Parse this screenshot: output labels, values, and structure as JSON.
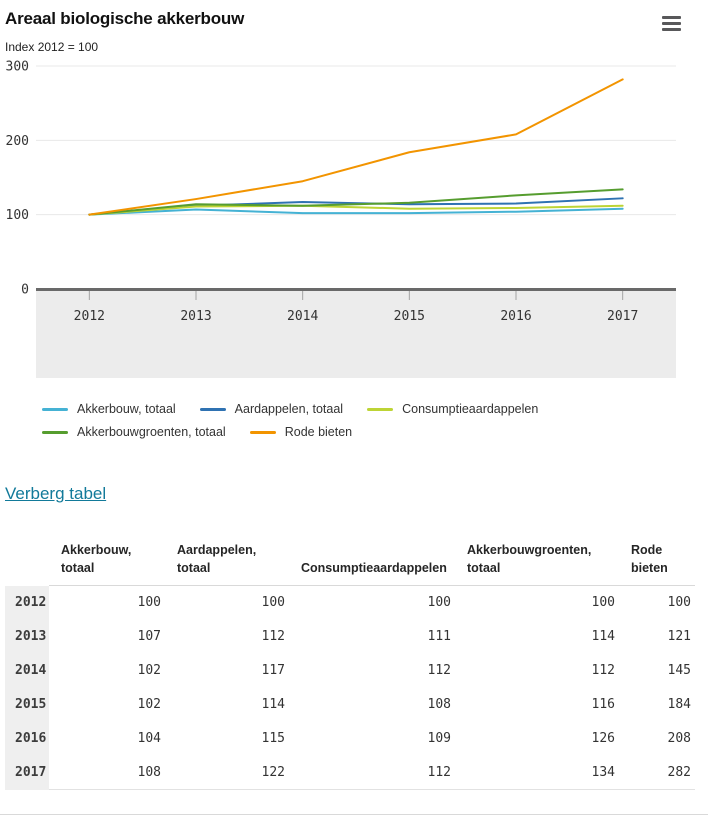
{
  "header": {
    "title": "Areaal biologische akkerbouw",
    "subtitle": "Index 2012 = 100"
  },
  "chart_data": {
    "type": "line",
    "title": "Areaal biologische akkerbouw",
    "subtitle": "Index 2012 = 100",
    "x": [
      2012,
      2013,
      2014,
      2015,
      2016,
      2017
    ],
    "series": [
      {
        "name": "Akkerbouw, totaal",
        "color": "#45b2d4",
        "values": [
          100,
          107,
          102,
          102,
          104,
          108
        ]
      },
      {
        "name": "Aardappelen, totaal",
        "color": "#2f72b2",
        "values": [
          100,
          112,
          117,
          114,
          115,
          122
        ]
      },
      {
        "name": "Consumptieaardappelen",
        "color": "#bdd435",
        "values": [
          100,
          111,
          112,
          108,
          109,
          112
        ]
      },
      {
        "name": "Akkerbouwgroenten, totaal",
        "color": "#569d2f",
        "values": [
          100,
          114,
          112,
          116,
          126,
          134
        ]
      },
      {
        "name": "Rode bieten",
        "color": "#f29400",
        "values": [
          100,
          121,
          145,
          184,
          208,
          282
        ]
      }
    ],
    "ylim": [
      0,
      300
    ],
    "yticks": [
      0,
      100,
      200,
      300
    ],
    "grid": true,
    "legend_position": "bottom",
    "legend_rows": [
      [
        0,
        1,
        2
      ],
      [
        3,
        4
      ]
    ],
    "colors": {
      "gridline": "#e8e8e8",
      "axis": "#696969",
      "plot_band": "#ececec",
      "tick": "#a3a3a3",
      "logo": "#b5b5b5"
    }
  },
  "logo": {
    "top": "cb",
    "bottom": "s"
  },
  "table_link": {
    "label": "Verberg tabel"
  },
  "table": {
    "columns": [
      "Akkerbouw, totaal",
      "Aardappelen, totaal",
      "Consumptieaardappelen",
      "Akkerbouwgroenten, totaal",
      "Rode bieten"
    ],
    "rows": [
      {
        "year": "2012",
        "values": [
          100,
          100,
          100,
          100,
          100
        ]
      },
      {
        "year": "2013",
        "values": [
          107,
          112,
          111,
          114,
          121
        ]
      },
      {
        "year": "2014",
        "values": [
          102,
          117,
          112,
          112,
          145
        ]
      },
      {
        "year": "2015",
        "values": [
          102,
          114,
          108,
          116,
          184
        ]
      },
      {
        "year": "2016",
        "values": [
          104,
          115,
          109,
          126,
          208
        ]
      },
      {
        "year": "2017",
        "values": [
          108,
          122,
          112,
          134,
          282
        ]
      }
    ]
  }
}
